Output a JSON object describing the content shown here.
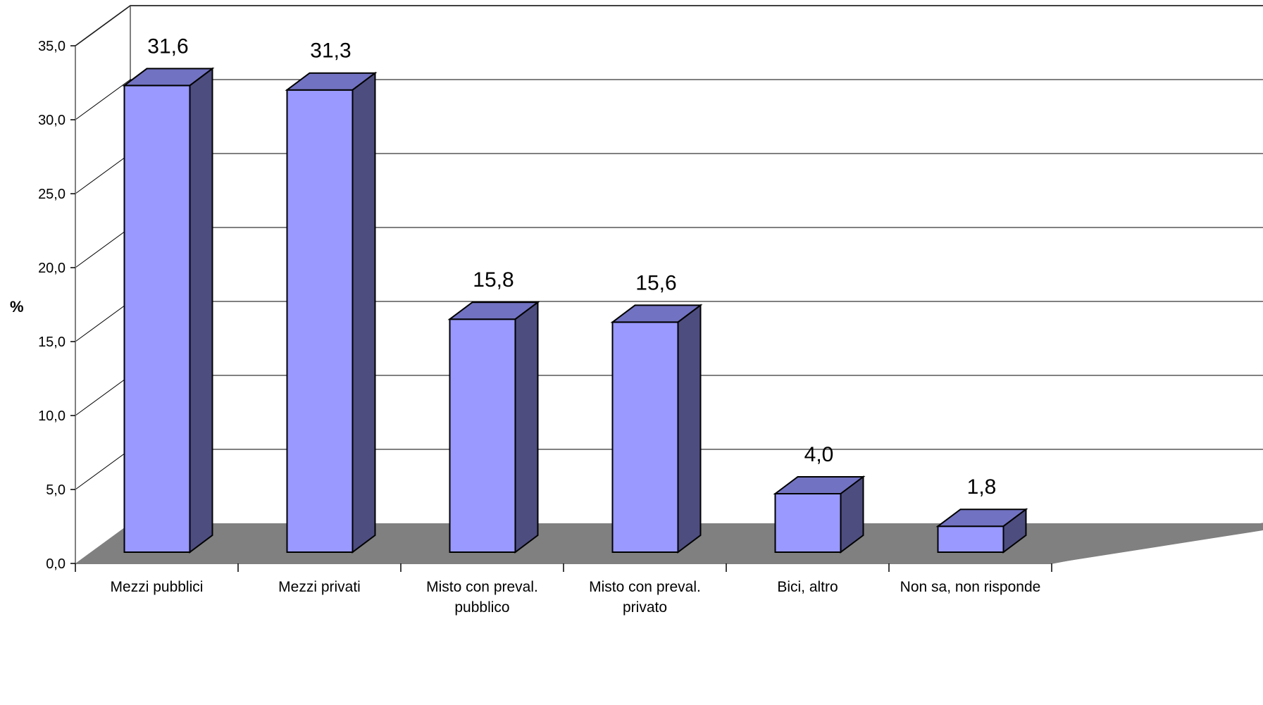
{
  "chart_data": {
    "type": "bar",
    "categories": [
      [
        "Mezzi pubblici"
      ],
      [
        "Mezzi privati"
      ],
      [
        "Misto con preval.",
        "pubblico"
      ],
      [
        "Misto con preval.",
        "privato"
      ],
      [
        "Bici, altro"
      ],
      [
        "Non sa, non risponde"
      ]
    ],
    "values": [
      31.6,
      31.3,
      15.8,
      15.6,
      4.0,
      1.8
    ],
    "value_labels": [
      "31,6",
      "31,3",
      "15,8",
      "15,6",
      "4,0",
      "1,8"
    ],
    "ylabel": "%",
    "ylim": [
      0,
      35
    ],
    "y_ticks": [
      "0,0",
      "5,0",
      "10,0",
      "15,0",
      "20,0",
      "25,0",
      "30,0",
      "35,0"
    ],
    "grid": true,
    "style": "3d-column",
    "colors": {
      "bar_front": "#9999ff",
      "bar_top": "#7272c2",
      "bar_side": "#4d4d80",
      "floor": "#808080",
      "grid": "#808080"
    }
  }
}
